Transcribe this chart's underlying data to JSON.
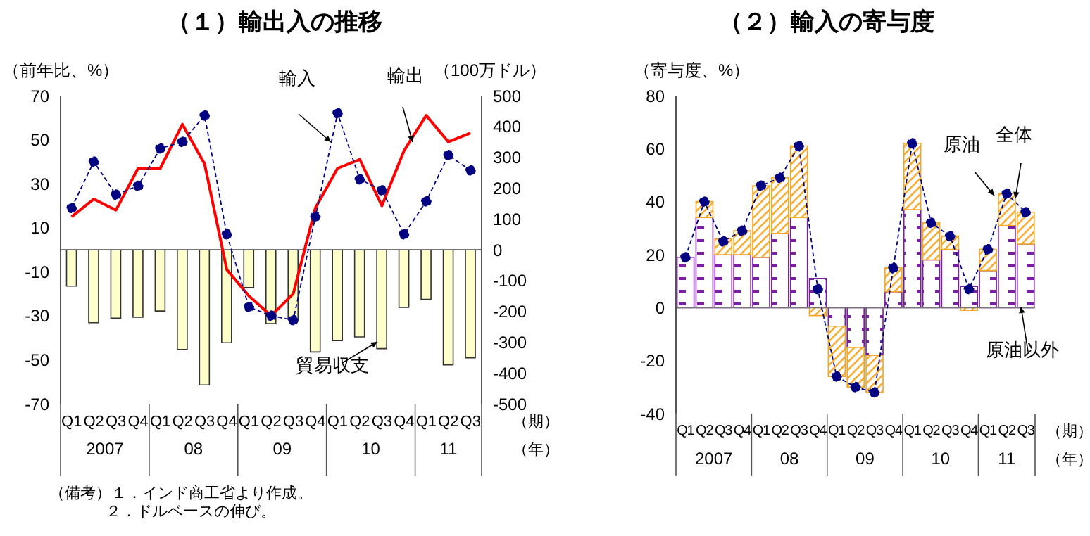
{
  "chart_data": [
    {
      "type": "bar",
      "title": "（１）輸出入の推移",
      "ylabel": "（前年比、%）",
      "y2label": "（100万ドル）",
      "categories": [
        "Q1",
        "Q2",
        "Q3",
        "Q4",
        "Q1",
        "Q2",
        "Q3",
        "Q4",
        "Q1",
        "Q2",
        "Q3",
        "Q4",
        "Q1",
        "Q2",
        "Q3",
        "Q4",
        "Q1",
        "Q2",
        "Q3"
      ],
      "ylim": [
        -70,
        70
      ],
      "yticks": [
        -70,
        -50,
        -30,
        -10,
        10,
        30,
        50,
        70
      ],
      "y2lim": [
        -500,
        500
      ],
      "y2ticks": [
        -500,
        -400,
        -300,
        -200,
        -100,
        0,
        100,
        200,
        300,
        400,
        500
      ],
      "annotations": [
        "2007",
        "08",
        "09",
        "10",
        "11",
        "（期）",
        "（年）",
        "（備考）１．インド商工省より作成。",
        "２．ドルベースの伸び。"
      ],
      "series": [
        {
          "name": "貿易収支",
          "type": "bar",
          "axis": "y2",
          "color": "#ffffcc",
          "values": [
            -118,
            -237,
            -222,
            -219,
            -199,
            -324,
            -439,
            -302,
            -123,
            -240,
            -225,
            -332,
            -295,
            -283,
            -321,
            -187,
            -161,
            -374,
            -351
          ]
        },
        {
          "name": "輸出",
          "type": "line",
          "color": "#ff0000",
          "marker": "none",
          "line_style": "solid",
          "values": [
            15,
            23,
            18,
            37,
            37,
            57,
            39,
            -9,
            -21,
            -30,
            -20,
            19,
            37,
            41,
            20,
            45,
            61,
            49,
            53
          ]
        },
        {
          "name": "輸入",
          "type": "line",
          "color": "#000080",
          "marker": "circle",
          "line_style": "dashed",
          "values": [
            19,
            40,
            25,
            29,
            46,
            49,
            61,
            7,
            -26,
            -30,
            -32,
            15,
            62,
            32,
            27,
            7,
            22,
            43,
            36
          ]
        }
      ]
    },
    {
      "type": "bar",
      "stacked": true,
      "title": "（２）輸入の寄与度",
      "ylabel": "（寄与度、%）",
      "categories": [
        "Q1",
        "Q2",
        "Q3",
        "Q4",
        "Q1",
        "Q2",
        "Q3",
        "Q4",
        "Q1",
        "Q2",
        "Q3",
        "Q4",
        "Q1",
        "Q2",
        "Q3",
        "Q4",
        "Q1",
        "Q2",
        "Q3"
      ],
      "ylim": [
        -40,
        80
      ],
      "yticks": [
        -40,
        -20,
        0,
        20,
        40,
        60,
        80
      ],
      "annotations": [
        "2007",
        "08",
        "09",
        "10",
        "11",
        "（期）",
        "（年）"
      ],
      "series": [
        {
          "name": "原油以外",
          "color": "#7b1fa2",
          "values": [
            19,
            34,
            20,
            20,
            19,
            28,
            34,
            11,
            -7,
            -15,
            -18,
            6,
            37,
            18,
            22,
            8,
            14,
            31,
            24
          ]
        },
        {
          "name": "原油",
          "color": "#f5a623",
          "values": [
            null,
            6,
            6,
            9,
            27,
            21,
            27,
            -3,
            -19,
            -15,
            -14,
            9,
            25,
            14,
            5,
            -1,
            8,
            12,
            12
          ]
        },
        {
          "name": "全体",
          "type": "line",
          "color": "#000080",
          "marker": "circle",
          "line_style": "dashed",
          "values": [
            19,
            40,
            25,
            29,
            46,
            49,
            61,
            7,
            -26,
            -30,
            -32,
            15,
            62,
            32,
            27,
            7,
            22,
            43,
            36
          ]
        }
      ]
    }
  ]
}
